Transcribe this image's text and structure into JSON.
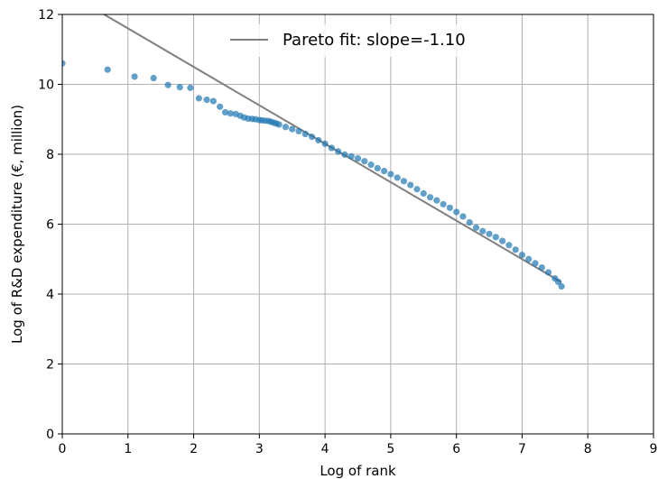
{
  "chart_data": {
    "type": "scatter",
    "xlabel": "Log of rank",
    "ylabel": "Log of R&D expenditure (€, million)",
    "xlim": [
      0,
      9
    ],
    "ylim": [
      0,
      12
    ],
    "xticks": [
      "0",
      "1",
      "2",
      "3",
      "4",
      "5",
      "6",
      "7",
      "8",
      "9"
    ],
    "yticks": [
      "0",
      "2",
      "4",
      "6",
      "8",
      "10",
      "12"
    ],
    "grid": true,
    "legend_position": "top-center",
    "colors": {
      "points": "#1f77b4",
      "fit": "#808080"
    },
    "series": [
      {
        "kind": "scatter",
        "points": [
          [
            0.0,
            10.6
          ],
          [
            0.69,
            10.42
          ],
          [
            1.1,
            10.22
          ],
          [
            1.39,
            10.18
          ],
          [
            1.61,
            9.98
          ],
          [
            1.79,
            9.92
          ],
          [
            1.95,
            9.9
          ],
          [
            2.08,
            9.6
          ],
          [
            2.2,
            9.56
          ],
          [
            2.3,
            9.52
          ],
          [
            2.4,
            9.36
          ],
          [
            2.48,
            9.2
          ],
          [
            2.56,
            9.17
          ],
          [
            2.64,
            9.15
          ],
          [
            2.71,
            9.1
          ],
          [
            2.77,
            9.05
          ],
          [
            2.83,
            9.02
          ],
          [
            2.89,
            9.01
          ],
          [
            2.94,
            9.0
          ],
          [
            3.0,
            8.98
          ],
          [
            3.04,
            8.97
          ],
          [
            3.09,
            8.96
          ],
          [
            3.14,
            8.95
          ],
          [
            3.18,
            8.93
          ],
          [
            3.22,
            8.9
          ],
          [
            3.26,
            8.88
          ],
          [
            3.3,
            8.85
          ],
          [
            3.4,
            8.78
          ],
          [
            3.5,
            8.72
          ],
          [
            3.6,
            8.66
          ],
          [
            3.7,
            8.58
          ],
          [
            3.8,
            8.5
          ],
          [
            3.9,
            8.4
          ],
          [
            4.0,
            8.3
          ],
          [
            4.1,
            8.18
          ],
          [
            4.2,
            8.08
          ],
          [
            4.3,
            7.99
          ],
          [
            4.4,
            7.94
          ],
          [
            4.5,
            7.88
          ],
          [
            4.6,
            7.8
          ],
          [
            4.7,
            7.7
          ],
          [
            4.8,
            7.6
          ],
          [
            4.9,
            7.52
          ],
          [
            5.0,
            7.43
          ],
          [
            5.1,
            7.33
          ],
          [
            5.2,
            7.23
          ],
          [
            5.3,
            7.12
          ],
          [
            5.4,
            7.0
          ],
          [
            5.5,
            6.88
          ],
          [
            5.6,
            6.77
          ],
          [
            5.7,
            6.68
          ],
          [
            5.8,
            6.57
          ],
          [
            5.9,
            6.47
          ],
          [
            6.0,
            6.35
          ],
          [
            6.1,
            6.22
          ],
          [
            6.2,
            6.05
          ],
          [
            6.3,
            5.9
          ],
          [
            6.4,
            5.8
          ],
          [
            6.5,
            5.72
          ],
          [
            6.6,
            5.63
          ],
          [
            6.7,
            5.52
          ],
          [
            6.8,
            5.4
          ],
          [
            6.9,
            5.27
          ],
          [
            7.0,
            5.12
          ],
          [
            7.1,
            5.0
          ],
          [
            7.2,
            4.88
          ],
          [
            7.3,
            4.76
          ],
          [
            7.4,
            4.62
          ],
          [
            7.5,
            4.45
          ],
          [
            7.55,
            4.35
          ],
          [
            7.6,
            4.22
          ]
        ]
      },
      {
        "kind": "line",
        "name": "Pareto fit: slope=-1.10",
        "points": [
          [
            0.0,
            12.7
          ],
          [
            7.6,
            4.34
          ]
        ]
      }
    ]
  }
}
